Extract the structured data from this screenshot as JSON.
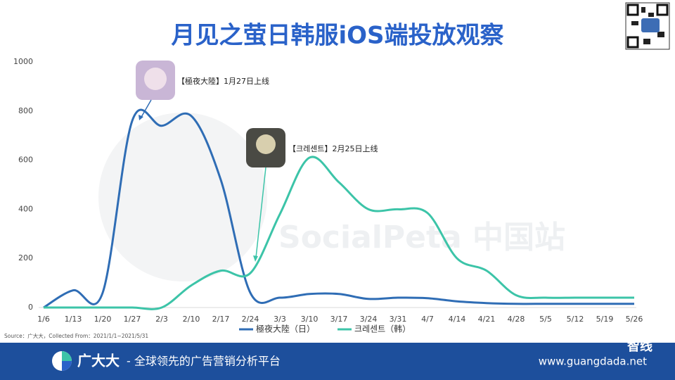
{
  "header": {
    "title": "月见之萤日韩服iOS端投放观察"
  },
  "chart_data": {
    "type": "line",
    "categories": [
      "1/6",
      "1/13",
      "1/20",
      "1/27",
      "2/3",
      "2/10",
      "2/17",
      "2/24",
      "3/3",
      "3/10",
      "3/17",
      "3/24",
      "3/31",
      "4/7",
      "4/14",
      "4/21",
      "4/28",
      "5/5",
      "5/12",
      "5/19",
      "5/26"
    ],
    "series": [
      {
        "name": "極夜大陸（日）",
        "color": "#2f6db5",
        "values": [
          0,
          70,
          60,
          760,
          740,
          780,
          520,
          60,
          40,
          55,
          55,
          35,
          40,
          38,
          25,
          18,
          15,
          15,
          15,
          15,
          15
        ]
      },
      {
        "name": "크레센트（韩）",
        "color": "#3cc4a8",
        "values": [
          0,
          0,
          0,
          0,
          0,
          90,
          150,
          140,
          380,
          610,
          510,
          400,
          400,
          385,
          200,
          150,
          50,
          40,
          40,
          40,
          40
        ]
      }
    ],
    "ylim": [
      0,
      1000
    ],
    "yticks": [
      0,
      200,
      400,
      600,
      800,
      1000
    ],
    "grid": false,
    "annotations": [
      "【極夜大陸】1月27日上线",
      "【크레센트】2月25日上线"
    ],
    "source": "Source：广大大，Collected From：2021/1/1~2021/5/31",
    "watermark": "SocialPeta 中国站"
  },
  "footer": {
    "brand": "广大大",
    "slogan": "- 全球领先的广告营销分析平台",
    "url": "www.guangdada.net",
    "wechat": "智线"
  }
}
